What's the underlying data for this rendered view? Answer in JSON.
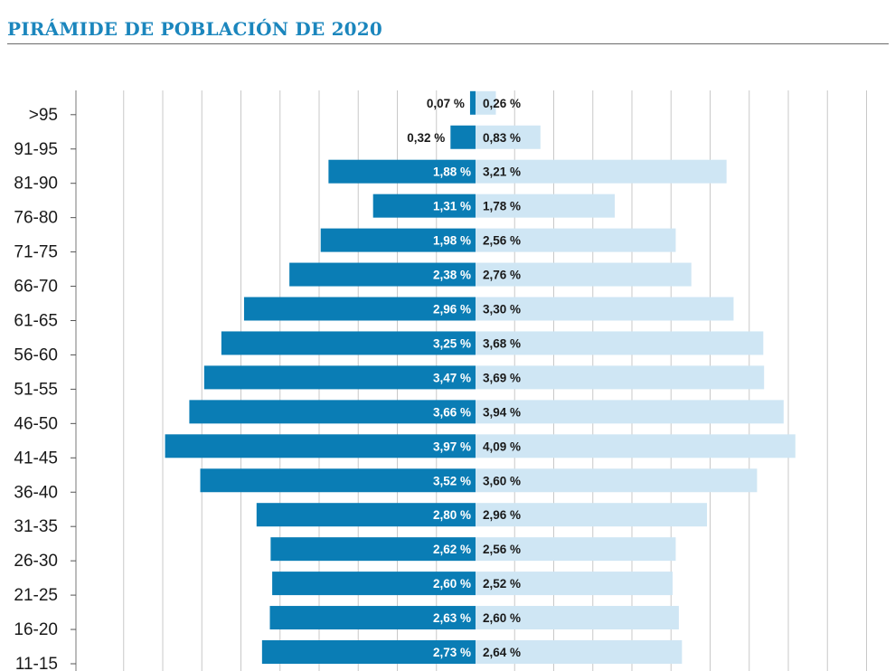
{
  "chart_data": {
    "type": "bar",
    "subtype": "population-pyramid",
    "title": "PIRÁMIDE DE POBLACIÓN DE 2020",
    "categories": [
      "11-15",
      "16-20",
      "21-25",
      "26-30",
      "31-35",
      "36-40",
      "41-45",
      "46-50",
      "51-55",
      "56-60",
      "61-65",
      "66-70",
      "71-75",
      "76-80",
      "81-90",
      "91-95",
      ">95"
    ],
    "series": [
      {
        "name": "left",
        "side": "left",
        "color": "#0a7db5",
        "values": [
          2.73,
          2.63,
          2.6,
          2.62,
          2.8,
          3.52,
          3.97,
          3.66,
          3.47,
          3.25,
          2.96,
          2.38,
          1.98,
          1.31,
          1.88,
          0.32,
          0.07
        ],
        "labels": [
          "2,73 %",
          "2,63 %",
          "2,60 %",
          "2,62 %",
          "2,80 %",
          "3,52 %",
          "3,97 %",
          "3,66 %",
          "3,47 %",
          "3,25 %",
          "2,96 %",
          "2,38 %",
          "1,98 %",
          "1,31 %",
          "1,88 %",
          "0,32 %",
          "0,07 %"
        ]
      },
      {
        "name": "right",
        "side": "right",
        "color": "#cfe6f4",
        "values": [
          2.64,
          2.6,
          2.52,
          2.56,
          2.96,
          3.6,
          4.09,
          3.94,
          3.69,
          3.68,
          3.3,
          2.76,
          2.56,
          1.78,
          3.21,
          0.83,
          0.26
        ],
        "labels": [
          "2,64 %",
          "2,60 %",
          "2,52 %",
          "2,56 %",
          "2,96 %",
          "3,60 %",
          "4,09 %",
          "3,94 %",
          "3,69 %",
          "3,68 %",
          "3,30 %",
          "2,76 %",
          "2,56 %",
          "1,78 %",
          "3,21 %",
          "0,83 %",
          "0,26 %"
        ]
      }
    ],
    "xlim": [
      -4.5,
      5.0
    ],
    "grid_step": 0.5,
    "grid": true,
    "text_color_on_dark": "#ffffff",
    "text_color_dark": "#1a1a1a",
    "title_color": "#1b86bd",
    "gridline_color": "#c8c8c8"
  }
}
